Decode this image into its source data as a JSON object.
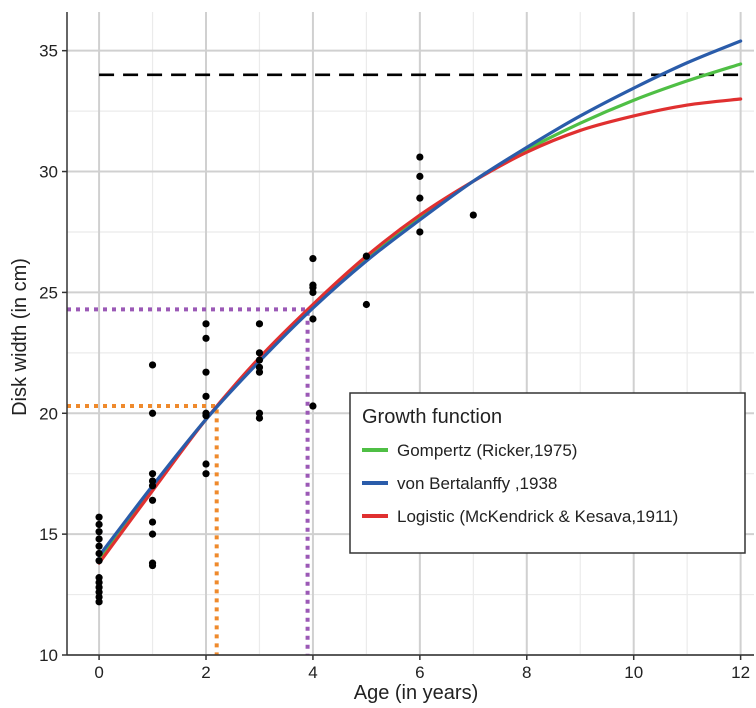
{
  "chart_data": {
    "type": "scatter",
    "xlabel": "Age (in years)",
    "ylabel": "Disk width (in cm)",
    "xlim": [
      -0.6,
      12.25
    ],
    "ylim": [
      10,
      36.6
    ],
    "xticks": [
      0,
      2,
      4,
      6,
      8,
      10,
      12
    ],
    "yticks": [
      10,
      15,
      20,
      25,
      30,
      35
    ],
    "grid": true,
    "observations": [
      [
        0,
        12.2
      ],
      [
        0,
        12.4
      ],
      [
        0,
        12.6
      ],
      [
        0,
        12.8
      ],
      [
        0,
        13.0
      ],
      [
        0,
        13.2
      ],
      [
        0,
        13.9
      ],
      [
        0,
        14.2
      ],
      [
        0,
        14.5
      ],
      [
        0,
        14.8
      ],
      [
        0,
        15.1
      ],
      [
        0,
        15.4
      ],
      [
        0,
        15.7
      ],
      [
        1,
        13.7
      ],
      [
        1,
        13.8
      ],
      [
        1,
        15.0
      ],
      [
        1,
        15.5
      ],
      [
        1,
        16.4
      ],
      [
        1,
        17.0
      ],
      [
        1,
        17.2
      ],
      [
        1,
        17.5
      ],
      [
        1,
        20.0
      ],
      [
        1,
        22.0
      ],
      [
        2,
        17.5
      ],
      [
        2,
        17.9
      ],
      [
        2,
        19.9
      ],
      [
        2,
        20.0
      ],
      [
        2,
        20.7
      ],
      [
        2,
        21.7
      ],
      [
        2,
        23.1
      ],
      [
        2,
        23.7
      ],
      [
        3,
        19.8
      ],
      [
        3,
        20.0
      ],
      [
        3,
        21.7
      ],
      [
        3,
        21.9
      ],
      [
        3,
        22.2
      ],
      [
        3,
        22.5
      ],
      [
        3,
        23.7
      ],
      [
        4,
        20.3
      ],
      [
        4,
        23.9
      ],
      [
        4,
        25.0
      ],
      [
        4,
        25.2
      ],
      [
        4,
        25.3
      ],
      [
        4,
        26.4
      ],
      [
        5,
        24.5
      ],
      [
        5,
        26.5
      ],
      [
        6,
        27.5
      ],
      [
        6,
        28.9
      ],
      [
        6,
        29.8
      ],
      [
        6,
        30.6
      ],
      [
        7,
        28.2
      ]
    ],
    "asymptote": 34.0,
    "series": [
      {
        "name": "Gompertz (Ricker,1975)",
        "color": "#4fbf45",
        "x": [
          0,
          1,
          2,
          3,
          4,
          5,
          6,
          7,
          8,
          9,
          10,
          11,
          12
        ],
        "y": [
          13.9,
          16.9,
          19.75,
          22.2,
          24.4,
          26.4,
          28.1,
          29.6,
          30.9,
          32.0,
          32.95,
          33.75,
          34.45
        ]
      },
      {
        "name": "von Bertalanffy ,1938",
        "color": "#2a5caa",
        "x": [
          0,
          1,
          2,
          3,
          4,
          5,
          6,
          7,
          8,
          9,
          10,
          11,
          12
        ],
        "y": [
          14.1,
          17.0,
          19.75,
          22.15,
          24.35,
          26.3,
          28.0,
          29.6,
          31.0,
          32.3,
          33.45,
          34.5,
          35.4
        ]
      },
      {
        "name": "Logistic (McKendrick & Kesava,1911)",
        "color": "#e03030",
        "x": [
          0,
          1,
          2,
          3,
          4,
          5,
          6,
          7,
          8,
          9,
          10,
          11,
          12
        ],
        "y": [
          13.8,
          16.8,
          19.75,
          22.3,
          24.5,
          26.5,
          28.2,
          29.6,
          30.8,
          31.7,
          32.3,
          32.75,
          33.0
        ]
      }
    ],
    "reference_lines": [
      {
        "color": "#ef8a2c",
        "x": 2.2,
        "y": 20.3
      },
      {
        "color": "#9b59b6",
        "x": 3.9,
        "y": 24.3
      }
    ],
    "legend": {
      "title": "Growth function",
      "position": "bottom-right inside"
    }
  }
}
